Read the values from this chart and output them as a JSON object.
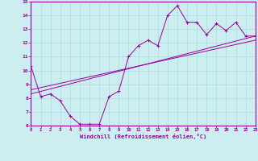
{
  "xlabel": "Windchill (Refroidissement éolien,°C)",
  "xlim": [
    0,
    23
  ],
  "ylim": [
    6,
    15
  ],
  "yticks": [
    6,
    7,
    8,
    9,
    10,
    11,
    12,
    13,
    14,
    15
  ],
  "xticks": [
    0,
    1,
    2,
    3,
    4,
    5,
    6,
    7,
    8,
    9,
    10,
    11,
    12,
    13,
    14,
    15,
    16,
    17,
    18,
    19,
    20,
    21,
    22,
    23
  ],
  "line_color": "#990099",
  "bg_color": "#cceef0",
  "grid_color": "#aadddd",
  "line1_x": [
    0,
    1,
    2,
    3,
    4,
    5,
    6,
    7,
    8,
    9,
    10,
    11,
    12,
    13,
    14,
    15,
    16,
    17,
    18,
    19,
    20,
    21,
    22,
    23
  ],
  "line1_y": [
    10.3,
    8.1,
    8.3,
    7.8,
    6.7,
    6.1,
    6.1,
    6.1,
    8.1,
    8.5,
    11.0,
    11.8,
    12.2,
    11.8,
    14.0,
    14.7,
    13.5,
    13.5,
    12.6,
    13.4,
    12.9,
    13.5,
    12.5,
    12.5
  ],
  "line2_x": [
    0,
    23
  ],
  "line2_y": [
    8.3,
    12.5
  ],
  "line3_x": [
    0,
    23
  ],
  "line3_y": [
    8.6,
    12.2
  ]
}
